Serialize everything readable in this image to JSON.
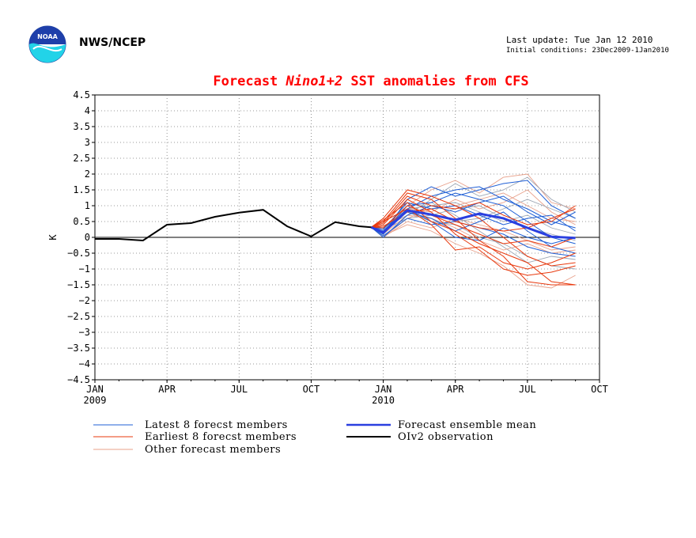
{
  "header": {
    "organization": "NWS/NCEP",
    "last_update": "Last update: Tue Jan 12 2010",
    "initial_conditions": "Initial conditions: 23Dec2009-1Jan2010",
    "logo_text": "NOAA"
  },
  "colors": {
    "latest": "#1f5fd6",
    "earliest": "#e8390e",
    "other": "#e8a08a",
    "other_alt": "#9ca6b4",
    "mean": "#2a3fe0",
    "obs": "#000000",
    "title": "#ff0000"
  },
  "chart_data": {
    "type": "line",
    "title_parts": [
      "Forecast ",
      "Nino1+2",
      " SST anomalies from CFS"
    ],
    "ylabel": "K",
    "xlabel": "",
    "ylim": [
      -4.5,
      4.5
    ],
    "yticks": [
      4.5,
      4,
      3.5,
      3,
      2.5,
      2,
      1.5,
      1,
      0.5,
      0,
      -0.5,
      -1,
      -1.5,
      -2,
      -2.5,
      -3,
      -3.5,
      -4,
      -4.5
    ],
    "xlim": [
      0,
      21
    ],
    "xticks": [
      {
        "x": 0,
        "label": "JAN",
        "year": "2009"
      },
      {
        "x": 3,
        "label": "APR"
      },
      {
        "x": 6,
        "label": "JUL"
      },
      {
        "x": 9,
        "label": "OCT"
      },
      {
        "x": 12,
        "label": "JAN",
        "year": "2010"
      },
      {
        "x": 15,
        "label": "APR"
      },
      {
        "x": 18,
        "label": "JUL"
      },
      {
        "x": 21,
        "label": "OCT"
      }
    ],
    "grid": true,
    "legend": [
      {
        "key": "latest",
        "label": "Latest 8 forecst members"
      },
      {
        "key": "earliest",
        "label": "Earliest 8 forecst members"
      },
      {
        "key": "other",
        "label": "Other forecast members"
      },
      {
        "key": "mean",
        "label": "Forecast ensemble mean"
      },
      {
        "key": "obs",
        "label": "OIv2 observation"
      }
    ],
    "forecast_x": [
      11.5,
      12,
      13,
      14,
      15,
      16,
      17,
      18,
      19,
      20
    ],
    "observation": {
      "x": [
        0,
        1,
        2,
        3,
        4,
        5,
        6,
        7,
        8,
        9,
        10,
        11,
        11.5
      ],
      "y": [
        -0.05,
        -0.05,
        -0.1,
        0.4,
        0.45,
        0.65,
        0.78,
        0.87,
        0.35,
        0.03,
        0.48,
        0.35,
        0.32
      ]
    },
    "ensemble_mean": [
      0.32,
      0.15,
      0.85,
      0.72,
      0.55,
      0.75,
      0.6,
      0.3,
      0.02,
      -0.02
    ],
    "latest_members": [
      [
        0.32,
        0.1,
        1.2,
        1.6,
        1.3,
        1.5,
        1.7,
        1.8,
        1.0,
        0.6
      ],
      [
        0.32,
        0.2,
        0.9,
        1.3,
        1.5,
        1.6,
        1.2,
        0.9,
        0.5,
        0.3
      ],
      [
        0.32,
        0.0,
        0.7,
        1.0,
        0.8,
        1.1,
        1.3,
        0.8,
        0.4,
        0.8
      ],
      [
        0.32,
        0.15,
        1.0,
        1.1,
        1.4,
        1.2,
        1.0,
        0.5,
        0.0,
        -0.2
      ],
      [
        0.32,
        0.3,
        0.8,
        0.6,
        0.2,
        0.5,
        0.8,
        0.2,
        -0.3,
        -0.5
      ],
      [
        0.32,
        0.05,
        0.6,
        0.4,
        0.5,
        0.3,
        0.1,
        -0.3,
        -0.5,
        -0.6
      ],
      [
        0.32,
        0.25,
        1.1,
        0.9,
        1.0,
        0.7,
        0.4,
        0.6,
        0.7,
        0.2
      ],
      [
        0.32,
        0.1,
        0.9,
        0.5,
        0.0,
        -0.1,
        0.3,
        0.0,
        -0.2,
        0.0
      ]
    ],
    "earliest_members": [
      [
        0.32,
        0.5,
        1.4,
        1.2,
        0.6,
        -0.1,
        -0.6,
        -1.4,
        -1.5,
        -1.5
      ],
      [
        0.32,
        0.4,
        1.2,
        0.8,
        0.1,
        -0.4,
        -1.0,
        -1.2,
        -1.1,
        -0.9
      ],
      [
        0.32,
        0.6,
        1.5,
        1.3,
        1.0,
        0.6,
        0.0,
        -0.6,
        -0.9,
        -0.8
      ],
      [
        0.32,
        0.3,
        1.0,
        0.7,
        0.4,
        0.1,
        -0.2,
        -0.1,
        -0.3,
        0.0
      ],
      [
        0.32,
        0.5,
        0.9,
        0.4,
        -0.4,
        -0.3,
        -0.8,
        -1.0,
        -0.8,
        -0.5
      ],
      [
        0.32,
        0.45,
        1.3,
        1.0,
        0.9,
        1.1,
        0.7,
        0.4,
        0.5,
        1.0
      ],
      [
        0.32,
        0.35,
        0.8,
        0.9,
        0.5,
        0.3,
        0.2,
        0.3,
        0.6,
        0.9
      ],
      [
        0.32,
        0.55,
        1.1,
        0.5,
        0.2,
        -0.2,
        -0.5,
        -0.8,
        -1.4,
        -1.5
      ]
    ],
    "other_members": [
      [
        0.32,
        0.2,
        1.0,
        1.5,
        1.8,
        1.4,
        1.9,
        2.0,
        1.1,
        0.9
      ],
      [
        0.32,
        0.3,
        0.7,
        1.2,
        1.7,
        1.3,
        1.5,
        1.9,
        1.2,
        0.8
      ],
      [
        0.32,
        0.1,
        0.9,
        0.8,
        1.2,
        0.9,
        1.1,
        1.5,
        0.8,
        0.4
      ],
      [
        0.32,
        0.25,
        0.6,
        0.7,
        0.9,
        1.0,
        0.6,
        0.3,
        0.1,
        -0.1
      ],
      [
        0.32,
        0.0,
        0.5,
        0.3,
        0.6,
        0.4,
        0.2,
        -0.1,
        -0.4,
        -0.3
      ],
      [
        0.32,
        0.15,
        0.8,
        1.1,
        0.7,
        0.2,
        -0.3,
        -0.8,
        -0.6,
        -0.7
      ],
      [
        0.32,
        0.05,
        0.4,
        0.2,
        -0.2,
        -0.5,
        -0.9,
        -1.5,
        -1.6,
        -1.2
      ],
      [
        0.32,
        0.2,
        1.1,
        0.9,
        0.5,
        0.6,
        0.9,
        1.2,
        0.9,
        0.6
      ],
      [
        0.32,
        0.1,
        0.7,
        0.6,
        0.3,
        -0.1,
        -0.4,
        -0.2,
        -0.5,
        -0.4
      ],
      [
        0.32,
        0.3,
        0.9,
        1.0,
        1.1,
        0.8,
        0.5,
        0.7,
        0.3,
        0.1
      ],
      [
        0.32,
        0.0,
        0.6,
        0.9,
        1.0,
        1.2,
        1.4,
        1.0,
        0.6,
        0.5
      ],
      [
        0.32,
        0.2,
        0.8,
        0.5,
        0.4,
        0.0,
        -0.2,
        -0.6,
        -0.9,
        -1.0
      ]
    ]
  }
}
